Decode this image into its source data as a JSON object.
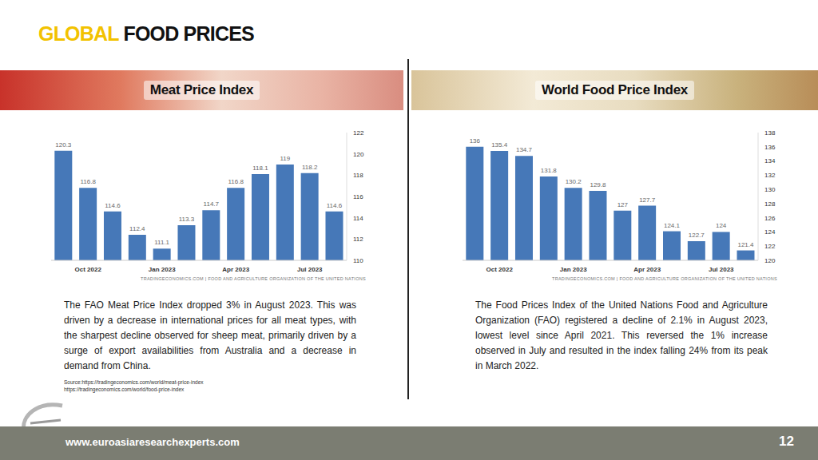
{
  "title": {
    "highlight": "GLOBAL",
    "main": "FOOD PRICES"
  },
  "chart_data": [
    {
      "type": "bar",
      "title": "Meat Price Index",
      "categories": [
        null,
        "Oct 2022",
        null,
        null,
        "Jan 2023",
        null,
        null,
        "Apr 2023",
        null,
        null,
        "Jul 2023",
        null
      ],
      "values": [
        120.3,
        116.8,
        114.6,
        112.4,
        111.1,
        113.3,
        114.7,
        116.8,
        118.1,
        119,
        118.2,
        114.6
      ],
      "color": "#4678b8",
      "ylim": [
        110,
        122
      ],
      "yticks": [
        110,
        112,
        114,
        116,
        118,
        120,
        122
      ],
      "grid": false,
      "data_labels": true,
      "annotations": [
        "TRADINGECONOMICS.COM | FOOD AND AGRICULTURE ORGANIZATION OF THE UNITED NATIONS"
      ],
      "caption": "The FAO Meat Price Index dropped 3% in August 2023. This was driven by a decrease in international prices for all meat types, with the sharpest decline observed for sheep meat, primarily driven by a surge of export availabilities from Australia and a decrease in demand from China."
    },
    {
      "type": "bar",
      "title": "World Food Price Index",
      "categories": [
        null,
        "Oct 2022",
        null,
        null,
        "Jan 2023",
        null,
        null,
        "Apr 2023",
        null,
        null,
        "Jul 2023",
        null
      ],
      "values": [
        136,
        135.4,
        134.7,
        131.8,
        130.2,
        129.8,
        127,
        127.7,
        124.1,
        122.7,
        124,
        121.4
      ],
      "color": "#4678b8",
      "ylim": [
        120,
        138
      ],
      "yticks": [
        120,
        122,
        124,
        126,
        128,
        130,
        132,
        134,
        136,
        138
      ],
      "grid": false,
      "data_labels": true,
      "annotations": [
        "TRADINGECONOMICS.COM | FOOD AND AGRICULTURE ORGANIZATION OF THE UNITED NATIONS"
      ],
      "caption": "The Food Prices Index of the United Nations Food and Agriculture Organization (FAO) registered a decline of 2.1% in August 2023, lowest level since April 2021. This reversed the 1% increase observed in July and resulted in the index falling 24% from its peak in March 2022."
    }
  ],
  "sources": [
    "Source:https://tradingeconomics.com/world/meat-price-index",
    "https://tradingeconomics.com/world/food-price-index"
  ],
  "footer": {
    "url": "www.euroasiaresearchexperts.com",
    "page": "12"
  }
}
